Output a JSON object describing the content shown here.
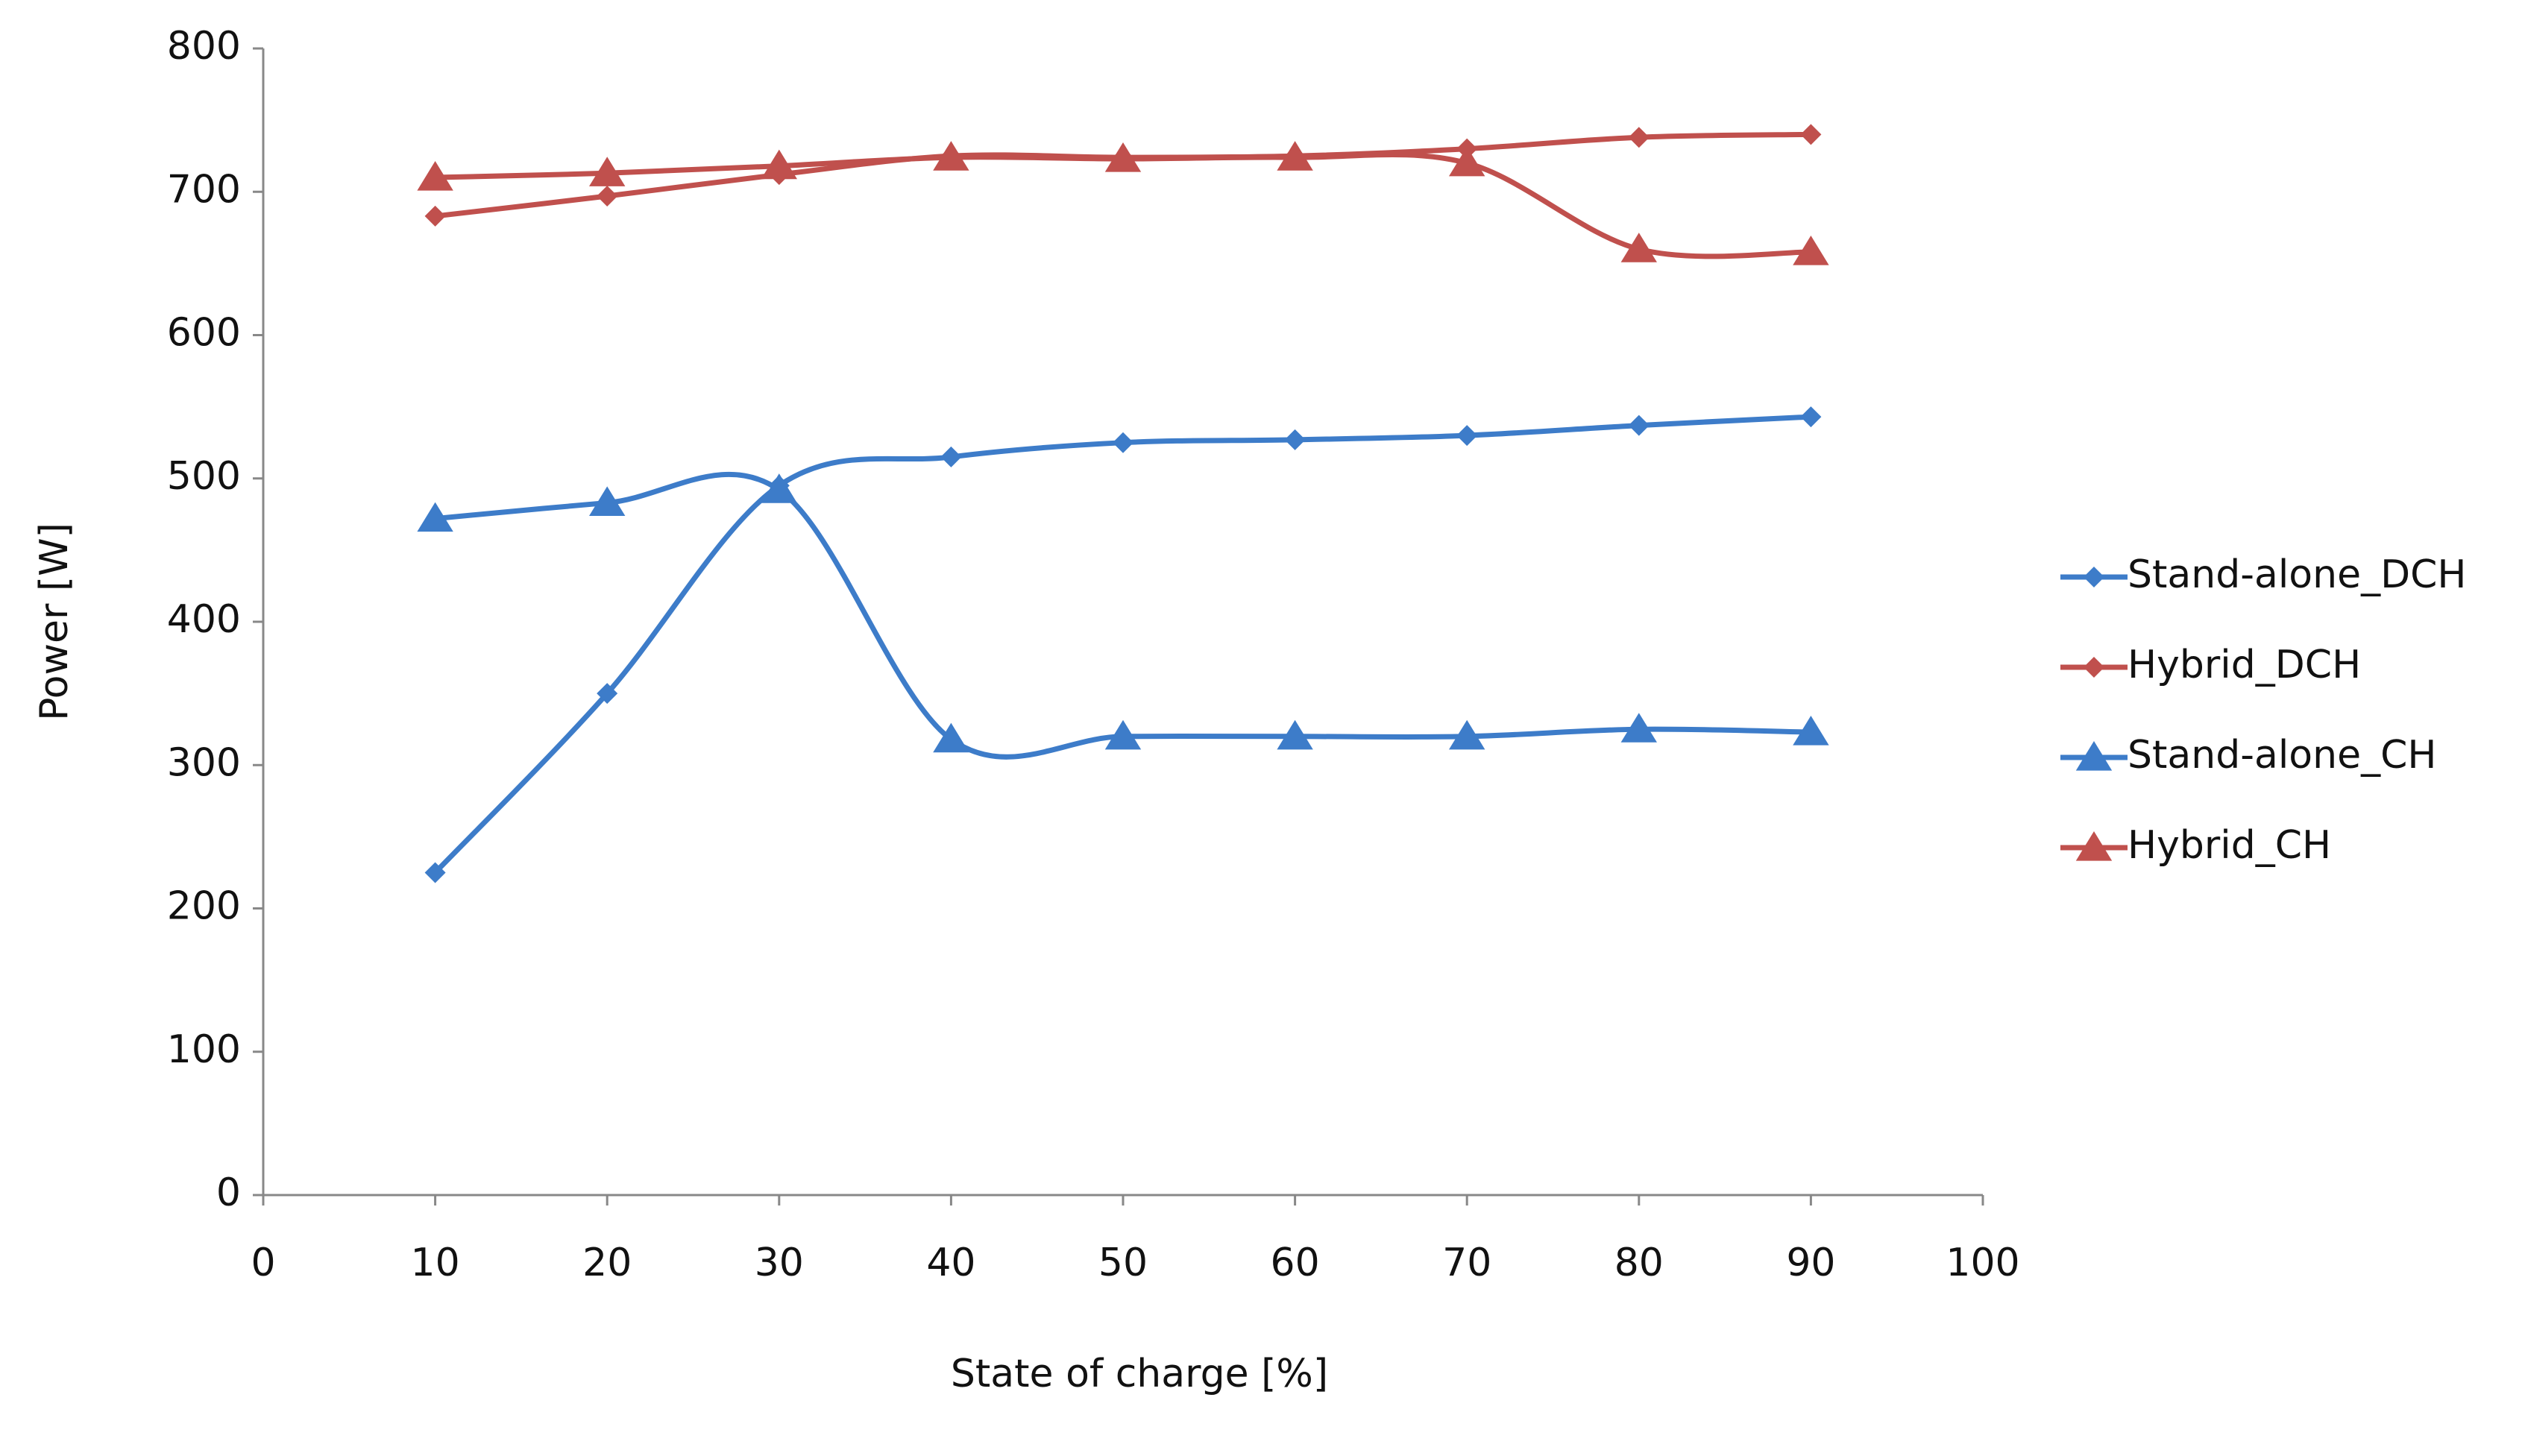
{
  "chart_data": {
    "type": "line",
    "x_label": "State of charge [%]",
    "y_label": "Power [W]",
    "x": [
      10,
      20,
      30,
      40,
      50,
      60,
      70,
      80,
      90
    ],
    "series": [
      {
        "name": "Stand-alone_DCH",
        "color": "#3d7cc9",
        "marker": "diamond",
        "values": [
          225,
          350,
          495,
          515,
          525,
          527,
          530,
          537,
          543
        ]
      },
      {
        "name": "Hybrid_DCH",
        "color": "#c0504d",
        "marker": "diamond",
        "values": [
          683,
          697,
          712,
          725,
          724,
          725,
          730,
          738,
          740
        ]
      },
      {
        "name": "Stand-alone_CH",
        "color": "#3d7cc9",
        "marker": "triangle",
        "values": [
          472,
          483,
          492,
          318,
          320,
          320,
          320,
          325,
          323
        ]
      },
      {
        "name": "Hybrid_CH",
        "color": "#c0504d",
        "marker": "triangle",
        "values": [
          710,
          713,
          718,
          724,
          723,
          724,
          720,
          660,
          658
        ]
      }
    ],
    "xlim": [
      0,
      100
    ],
    "xticks": [
      0,
      10,
      20,
      30,
      40,
      50,
      60,
      70,
      80,
      90,
      100
    ],
    "ylim": [
      0,
      800
    ],
    "yticks": [
      0,
      100,
      200,
      300,
      400,
      500,
      600,
      700,
      800
    ],
    "grid": false,
    "legend": "right",
    "smooth": true
  }
}
